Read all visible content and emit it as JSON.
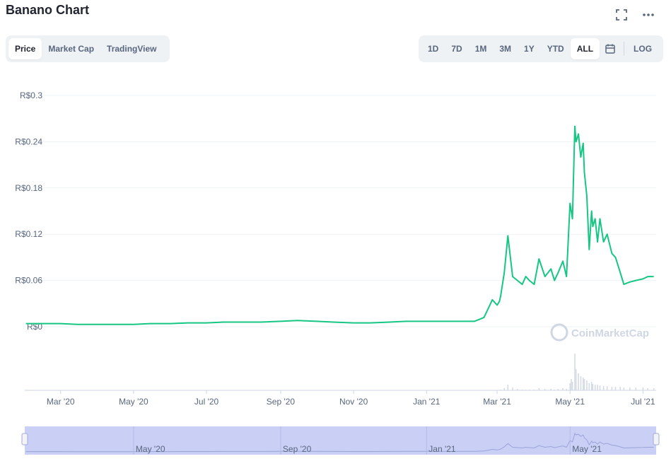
{
  "header": {
    "title": "Banano Chart"
  },
  "toolbar": {
    "view_tabs": [
      "Price",
      "Market Cap",
      "TradingView"
    ],
    "active_view": "Price",
    "ranges": [
      "1D",
      "7D",
      "1M",
      "3M",
      "1Y",
      "YTD",
      "ALL"
    ],
    "active_range": "ALL",
    "log_label": "LOG"
  },
  "watermark": "CoinMarketCap",
  "colors": {
    "line": "#16c784",
    "grid": "#eff2f5",
    "navigator_fill": "#c9cff5",
    "text": "#58667e"
  },
  "icons": [
    "fullscreen-icon",
    "more-icon",
    "calendar-icon"
  ],
  "chart_data": {
    "type": "line",
    "title": "Banano Chart",
    "series": [
      {
        "name": "Price",
        "x": [
          "2020-02-01",
          "2020-02-15",
          "2020-03-01",
          "2020-03-15",
          "2020-04-01",
          "2020-04-15",
          "2020-05-01",
          "2020-05-15",
          "2020-06-01",
          "2020-06-15",
          "2020-07-01",
          "2020-07-15",
          "2020-08-01",
          "2020-08-15",
          "2020-09-01",
          "2020-09-15",
          "2020-10-01",
          "2020-10-15",
          "2020-11-01",
          "2020-11-15",
          "2020-12-01",
          "2020-12-15",
          "2021-01-01",
          "2021-01-15",
          "2021-02-01",
          "2021-02-10",
          "2021-02-15",
          "2021-02-18",
          "2021-02-22",
          "2021-02-25",
          "2021-03-01",
          "2021-03-03",
          "2021-03-04",
          "2021-03-07",
          "2021-03-10",
          "2021-03-14",
          "2021-03-18",
          "2021-03-22",
          "2021-03-25",
          "2021-03-28",
          "2021-04-01",
          "2021-04-05",
          "2021-04-10",
          "2021-04-15",
          "2021-04-18",
          "2021-04-21",
          "2021-04-25",
          "2021-04-28",
          "2021-05-01",
          "2021-05-02",
          "2021-05-03",
          "2021-05-05",
          "2021-05-06",
          "2021-05-08",
          "2021-05-10",
          "2021-05-12",
          "2021-05-13",
          "2021-05-15",
          "2021-05-17",
          "2021-05-19",
          "2021-05-20",
          "2021-05-22",
          "2021-05-24",
          "2021-05-26",
          "2021-05-29",
          "2021-06-01",
          "2021-06-05",
          "2021-06-08",
          "2021-06-12",
          "2021-06-15",
          "2021-06-20",
          "2021-06-25",
          "2021-07-01",
          "2021-07-05",
          "2021-07-10"
        ],
        "y": [
          0.004,
          0.004,
          0.004,
          0.003,
          0.003,
          0.003,
          0.003,
          0.004,
          0.004,
          0.005,
          0.005,
          0.006,
          0.006,
          0.006,
          0.007,
          0.008,
          0.007,
          0.006,
          0.005,
          0.005,
          0.006,
          0.007,
          0.007,
          0.007,
          0.007,
          0.007,
          0.01,
          0.012,
          0.025,
          0.035,
          0.028,
          0.033,
          0.04,
          0.07,
          0.118,
          0.065,
          0.06,
          0.055,
          0.065,
          0.06,
          0.055,
          0.088,
          0.065,
          0.075,
          0.06,
          0.07,
          0.085,
          0.065,
          0.16,
          0.15,
          0.14,
          0.26,
          0.24,
          0.25,
          0.22,
          0.238,
          0.2,
          0.17,
          0.1,
          0.15,
          0.13,
          0.14,
          0.11,
          0.14,
          0.11,
          0.12,
          0.095,
          0.09,
          0.07,
          0.055,
          0.058,
          0.06,
          0.062,
          0.065,
          0.065
        ]
      }
    ],
    "volume": [
      0,
      0,
      0,
      0,
      0,
      0,
      0,
      0,
      0,
      0,
      0,
      0,
      0,
      0,
      0,
      0,
      0,
      0,
      0,
      0,
      0,
      0,
      0,
      0,
      0,
      0,
      0,
      0,
      0,
      0,
      0,
      0,
      1,
      3,
      8,
      4,
      2,
      1,
      1,
      1,
      1,
      3,
      2,
      2,
      1,
      2,
      3,
      2,
      10,
      16,
      12,
      52,
      30,
      24,
      20,
      18,
      16,
      14,
      10,
      12,
      9,
      8,
      8,
      7,
      6,
      6,
      5,
      5,
      5,
      4,
      4,
      4,
      4,
      3,
      3
    ],
    "yticks": [
      "R$0",
      "R$0.06",
      "R$0.12",
      "R$0.18",
      "R$0.24",
      "R$0.3"
    ],
    "xticks": [
      "Mar '20",
      "May '20",
      "Jul '20",
      "Sep '20",
      "Nov '20",
      "Jan '21",
      "Mar '21",
      "May '21",
      "Jul '21"
    ],
    "navigator_ticks": [
      "May '20",
      "Sep '20",
      "Jan '21",
      "May '21"
    ],
    "ylim": [
      0,
      0.3
    ],
    "grid": true,
    "legend": "none"
  }
}
